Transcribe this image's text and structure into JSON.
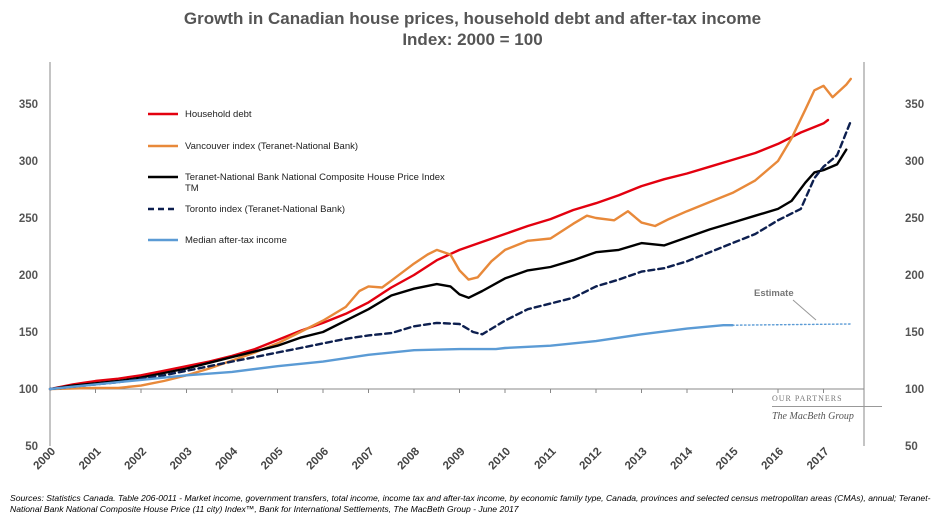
{
  "chart_data": {
    "type": "line",
    "title": "Growth in Canadian house prices, household debt and after-tax income",
    "subtitle": "Index: 2000 = 100",
    "ylim": [
      50,
      375
    ],
    "yticks": [
      "50",
      "100",
      "150",
      "200",
      "250",
      "300",
      "350"
    ],
    "xticks": [
      "2000",
      "2001",
      "2002",
      "2003",
      "2004",
      "2005",
      "2006",
      "2007",
      "2008",
      "2009",
      "2010",
      "2011",
      "2012",
      "2013",
      "2014",
      "2015",
      "2016",
      "2017"
    ],
    "grid": false,
    "legend_position": "top-left",
    "series": [
      {
        "name": "Household debt",
        "color": "#e3000f",
        "dash": false,
        "points": [
          [
            2000,
            100
          ],
          [
            2000.5,
            104
          ],
          [
            2001,
            107
          ],
          [
            2001.5,
            109
          ],
          [
            2002,
            112
          ],
          [
            2002.5,
            116
          ],
          [
            2003,
            120
          ],
          [
            2003.5,
            124
          ],
          [
            2004,
            129
          ],
          [
            2004.5,
            135
          ],
          [
            2005,
            143
          ],
          [
            2005.5,
            151
          ],
          [
            2006,
            158
          ],
          [
            2006.5,
            166
          ],
          [
            2007,
            176
          ],
          [
            2007.5,
            189
          ],
          [
            2008,
            200
          ],
          [
            2008.5,
            213
          ],
          [
            2009,
            222
          ],
          [
            2009.5,
            229
          ],
          [
            2010,
            236
          ],
          [
            2010.5,
            243
          ],
          [
            2011,
            249
          ],
          [
            2011.5,
            257
          ],
          [
            2012,
            263
          ],
          [
            2012.5,
            270
          ],
          [
            2013,
            278
          ],
          [
            2013.5,
            284
          ],
          [
            2014,
            289
          ],
          [
            2014.5,
            295
          ],
          [
            2015,
            301
          ],
          [
            2015.5,
            307
          ],
          [
            2016,
            315
          ],
          [
            2016.5,
            325
          ],
          [
            2017,
            333
          ],
          [
            2017.1,
            336
          ]
        ]
      },
      {
        "name": "Vancouver index (Teranet-National Bank)",
        "color": "#e8893a",
        "dash": false,
        "points": [
          [
            2000,
            100
          ],
          [
            2001,
            101
          ],
          [
            2001.5,
            101
          ],
          [
            2002,
            103
          ],
          [
            2002.5,
            107
          ],
          [
            2003,
            112
          ],
          [
            2003.5,
            118
          ],
          [
            2004,
            125
          ],
          [
            2004.5,
            132
          ],
          [
            2005,
            140
          ],
          [
            2005.5,
            150
          ],
          [
            2006,
            160
          ],
          [
            2006.5,
            172
          ],
          [
            2006.8,
            186
          ],
          [
            2007,
            190
          ],
          [
            2007.3,
            189
          ],
          [
            2007.5,
            195
          ],
          [
            2008,
            210
          ],
          [
            2008.3,
            218
          ],
          [
            2008.5,
            222
          ],
          [
            2008.8,
            218
          ],
          [
            2009,
            204
          ],
          [
            2009.2,
            196
          ],
          [
            2009.4,
            198
          ],
          [
            2009.7,
            212
          ],
          [
            2010,
            222
          ],
          [
            2010.5,
            230
          ],
          [
            2011,
            232
          ],
          [
            2011.5,
            245
          ],
          [
            2011.8,
            252
          ],
          [
            2012,
            250
          ],
          [
            2012.4,
            248
          ],
          [
            2012.7,
            256
          ],
          [
            2013,
            246
          ],
          [
            2013.3,
            243
          ],
          [
            2013.6,
            249
          ],
          [
            2014,
            256
          ],
          [
            2014.5,
            264
          ],
          [
            2015,
            272
          ],
          [
            2015.5,
            283
          ],
          [
            2016,
            300
          ],
          [
            2016.3,
            320
          ],
          [
            2016.6,
            345
          ],
          [
            2016.8,
            362
          ],
          [
            2017,
            366
          ],
          [
            2017.2,
            356
          ],
          [
            2017.5,
            367
          ],
          [
            2017.6,
            372
          ]
        ]
      },
      {
        "name": "Teranet-National Bank National Composite House Price Index TM",
        "color": "#000000",
        "dash": false,
        "points": [
          [
            2000,
            100
          ],
          [
            2000.5,
            103
          ],
          [
            2001,
            105
          ],
          [
            2001.5,
            107
          ],
          [
            2002,
            110
          ],
          [
            2002.5,
            114
          ],
          [
            2003,
            118
          ],
          [
            2003.5,
            123
          ],
          [
            2004,
            128
          ],
          [
            2004.5,
            133
          ],
          [
            2005,
            138
          ],
          [
            2005.5,
            145
          ],
          [
            2006,
            150
          ],
          [
            2006.5,
            160
          ],
          [
            2007,
            170
          ],
          [
            2007.5,
            182
          ],
          [
            2008,
            188
          ],
          [
            2008.5,
            192
          ],
          [
            2008.8,
            190
          ],
          [
            2009,
            183
          ],
          [
            2009.2,
            180
          ],
          [
            2009.5,
            186
          ],
          [
            2010,
            197
          ],
          [
            2010.5,
            204
          ],
          [
            2011,
            207
          ],
          [
            2011.5,
            213
          ],
          [
            2012,
            220
          ],
          [
            2012.5,
            222
          ],
          [
            2013,
            228
          ],
          [
            2013.5,
            226
          ],
          [
            2014,
            233
          ],
          [
            2014.5,
            240
          ],
          [
            2015,
            246
          ],
          [
            2015.5,
            252
          ],
          [
            2016,
            258
          ],
          [
            2016.3,
            265
          ],
          [
            2016.6,
            281
          ],
          [
            2016.8,
            290
          ],
          [
            2017,
            292
          ],
          [
            2017.3,
            297
          ],
          [
            2017.5,
            310
          ]
        ]
      },
      {
        "name": "Toronto index (Teranet-National Bank)",
        "color": "#0d1f4f",
        "dash": true,
        "points": [
          [
            2000,
            100
          ],
          [
            2000.5,
            102
          ],
          [
            2001,
            104
          ],
          [
            2001.5,
            106
          ],
          [
            2002,
            109
          ],
          [
            2002.5,
            112
          ],
          [
            2003,
            116
          ],
          [
            2003.5,
            120
          ],
          [
            2004,
            124
          ],
          [
            2004.5,
            128
          ],
          [
            2005,
            132
          ],
          [
            2005.5,
            136
          ],
          [
            2006,
            140
          ],
          [
            2006.5,
            144
          ],
          [
            2007,
            147
          ],
          [
            2007.5,
            149
          ],
          [
            2008,
            155
          ],
          [
            2008.5,
            158
          ],
          [
            2009,
            157
          ],
          [
            2009.3,
            150
          ],
          [
            2009.5,
            148
          ],
          [
            2010,
            160
          ],
          [
            2010.5,
            170
          ],
          [
            2011,
            175
          ],
          [
            2011.5,
            180
          ],
          [
            2012,
            190
          ],
          [
            2012.5,
            196
          ],
          [
            2013,
            203
          ],
          [
            2013.5,
            206
          ],
          [
            2014,
            212
          ],
          [
            2014.5,
            220
          ],
          [
            2015,
            228
          ],
          [
            2015.5,
            236
          ],
          [
            2016,
            248
          ],
          [
            2016.5,
            258
          ],
          [
            2016.8,
            285
          ],
          [
            2017,
            295
          ],
          [
            2017.3,
            305
          ],
          [
            2017.6,
            335
          ]
        ]
      },
      {
        "name": "Median after-tax income",
        "color": "#5b9bd5",
        "dash": false,
        "points": [
          [
            2000,
            100
          ],
          [
            2001,
            104
          ],
          [
            2002,
            108
          ],
          [
            2003,
            112
          ],
          [
            2004,
            115
          ],
          [
            2005,
            120
          ],
          [
            2006,
            124
          ],
          [
            2007,
            130
          ],
          [
            2008,
            134
          ],
          [
            2009,
            135
          ],
          [
            2009.8,
            135
          ],
          [
            2010,
            136
          ],
          [
            2011,
            138
          ],
          [
            2012,
            142
          ],
          [
            2013,
            148
          ],
          [
            2014,
            153
          ],
          [
            2014.8,
            156
          ],
          [
            2015,
            156
          ]
        ]
      },
      {
        "name": "",
        "color": "#5b9bd5",
        "dotted": true,
        "points": [
          [
            2015,
            156
          ],
          [
            2017.6,
            157
          ]
        ]
      }
    ],
    "annotation": "Estimate"
  },
  "watermark": {
    "top": "OUR PARTNERS",
    "name": "The MacBeth Group"
  },
  "source": "Sources: Statistics Canada. Table  206-0011 -  Market income, government transfers, total income, income tax and after-tax income, by economic family type, Canada, provinces and selected census metropolitan areas (CMAs), annual; Teranet-National Bank National Composite House Price (11 city) Index™, Bank for International Settlements, The MacBeth Group - June 2017"
}
